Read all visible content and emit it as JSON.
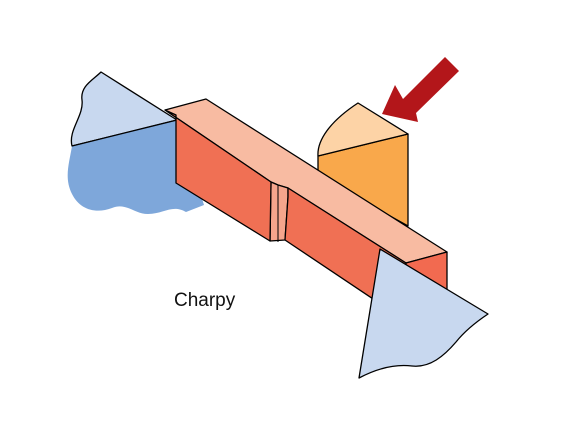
{
  "diagram": {
    "caption": "Charpy",
    "colors": {
      "background": "#ffffff",
      "outline": "#000000",
      "specimen_top": "#f8bba2",
      "specimen_side": "#f07054",
      "specimen_end": "#f26a50",
      "notch": "#f5a58c",
      "anvil_light": "#c8d8ef",
      "anvil_dark": "#7ea7da",
      "striker_top": "#fdd3a6",
      "striker_side": "#f9a84b",
      "arrow": "#b3161a"
    },
    "icons": {
      "striker": "hammer-striker-icon",
      "impact_arrow": "arrow-down-left-icon"
    }
  }
}
